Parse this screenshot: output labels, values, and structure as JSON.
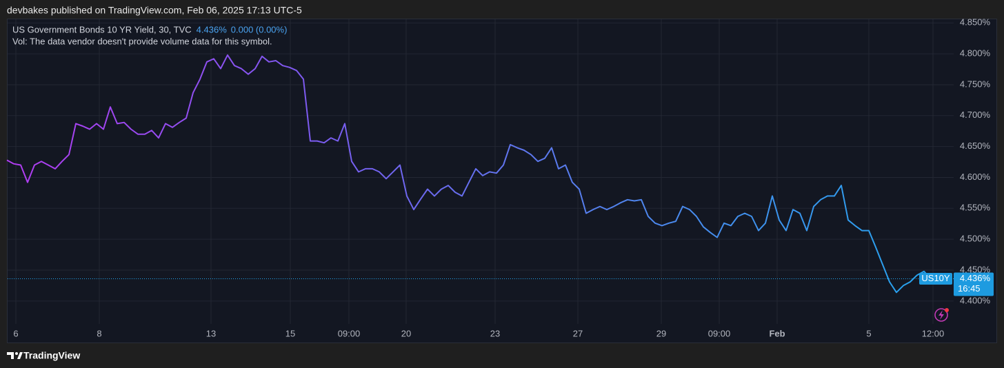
{
  "header": "devbakes published on TradingView.com, Feb 06, 2025 17:13 UTC-5",
  "footer": "TradingView",
  "chart_data": {
    "type": "line",
    "symbol": "US Government Bonds 10 YR Yield, 30, TVC",
    "last_value_label": "4.436%",
    "change_label": "0.000 (0.00%)",
    "volume_note": "Vol: The data vendor doesn't provide volume data for this symbol.",
    "price_tag": {
      "name": "US10Y",
      "value": 4.436,
      "label": "4.436%",
      "countdown": "16:45"
    },
    "line_colors": [
      "#b23cf2",
      "#7a5cf0",
      "#4f86ee",
      "#22a6ee"
    ],
    "grid": true,
    "x": [
      0,
      1,
      2,
      3,
      4,
      5,
      6,
      7,
      8,
      9,
      10,
      11,
      12,
      13,
      14,
      15,
      16,
      17,
      18,
      19,
      20,
      21,
      22,
      23,
      24,
      25,
      26,
      27,
      28,
      29,
      30,
      31,
      32,
      33,
      34,
      35,
      36,
      37,
      38,
      39,
      40,
      41,
      42,
      43,
      44,
      45,
      46,
      47,
      48,
      49,
      50,
      51,
      52,
      53,
      54,
      55,
      56,
      57,
      58,
      59,
      60,
      61,
      62,
      63,
      64,
      65,
      66,
      67,
      68,
      69,
      70,
      71,
      72,
      73,
      74,
      75,
      76,
      77,
      78,
      79,
      80,
      81,
      82,
      83,
      84,
      85,
      86,
      87,
      88,
      89,
      90,
      91,
      92,
      93,
      94,
      95,
      96,
      97,
      98,
      99,
      100,
      101,
      102,
      103,
      104,
      105,
      106,
      107,
      108,
      109,
      110,
      111,
      112,
      113,
      114,
      115,
      116,
      117,
      118,
      119,
      120,
      121,
      122,
      123,
      124,
      125,
      126,
      127,
      128,
      129,
      130,
      131,
      132,
      133,
      134
    ],
    "values": [
      4.628,
      4.622,
      4.62,
      4.592,
      4.62,
      4.626,
      4.62,
      4.614,
      4.626,
      4.637,
      4.687,
      4.683,
      4.678,
      4.687,
      4.678,
      4.714,
      4.687,
      4.689,
      4.678,
      4.67,
      4.67,
      4.676,
      4.664,
      4.687,
      4.681,
      4.689,
      4.696,
      4.737,
      4.759,
      4.787,
      4.792,
      4.776,
      4.798,
      4.781,
      4.776,
      4.767,
      4.776,
      4.796,
      4.787,
      4.789,
      4.781,
      4.778,
      4.773,
      4.759,
      4.659,
      4.659,
      4.656,
      4.664,
      4.659,
      4.687,
      4.626,
      4.609,
      4.614,
      4.614,
      4.609,
      4.598,
      4.609,
      4.62,
      4.57,
      4.548,
      4.565,
      4.581,
      4.57,
      4.581,
      4.587,
      4.576,
      4.57,
      4.592,
      4.614,
      4.603,
      4.609,
      4.607,
      4.62,
      4.653,
      4.648,
      4.644,
      4.637,
      4.626,
      4.631,
      4.648,
      4.614,
      4.62,
      4.592,
      4.581,
      4.542,
      4.548,
      4.553,
      4.548,
      4.553,
      4.559,
      4.564,
      4.562,
      4.564,
      4.537,
      4.526,
      4.522,
      4.526,
      4.529,
      4.553,
      4.548,
      4.537,
      4.52,
      4.511,
      4.503,
      4.526,
      4.522,
      4.537,
      4.542,
      4.537,
      4.514,
      4.526,
      4.57,
      4.531,
      4.514,
      4.548,
      4.542,
      4.514,
      4.553,
      4.564,
      4.57,
      4.57,
      4.587,
      4.531,
      4.522,
      4.514,
      4.514,
      4.487,
      4.459,
      4.431,
      4.414,
      4.425,
      4.431,
      4.442,
      4.448,
      4.436
    ],
    "xlim": [
      0,
      137.3
    ],
    "xticks": [
      {
        "value": 1.3,
        "label": "6"
      },
      {
        "value": 13.4,
        "label": "8"
      },
      {
        "value": 29.6,
        "label": "13"
      },
      {
        "value": 41.1,
        "label": "15"
      },
      {
        "value": 49.6,
        "label": "09:00"
      },
      {
        "value": 57.9,
        "label": "20"
      },
      {
        "value": 70.8,
        "label": "23"
      },
      {
        "value": 82.8,
        "label": "27"
      },
      {
        "value": 94.9,
        "label": "29"
      },
      {
        "value": 103.3,
        "label": "09:00"
      },
      {
        "value": 111.7,
        "label": "Feb"
      },
      {
        "value": 125,
        "label": "5"
      },
      {
        "value": 134.3,
        "label": "12:00"
      }
    ],
    "ylim": [
      4.363,
      4.857
    ],
    "yticks": [
      {
        "value": 4.4,
        "label": "4.400%"
      },
      {
        "value": 4.45,
        "label": "4.450%"
      },
      {
        "value": 4.5,
        "label": "4.500%"
      },
      {
        "value": 4.55,
        "label": "4.550%"
      },
      {
        "value": 4.6,
        "label": "4.600%"
      },
      {
        "value": 4.65,
        "label": "4.650%"
      },
      {
        "value": 4.7,
        "label": "4.700%"
      },
      {
        "value": 4.75,
        "label": "4.750%"
      },
      {
        "value": 4.8,
        "label": "4.800%"
      },
      {
        "value": 4.85,
        "label": "4.850%"
      }
    ]
  }
}
